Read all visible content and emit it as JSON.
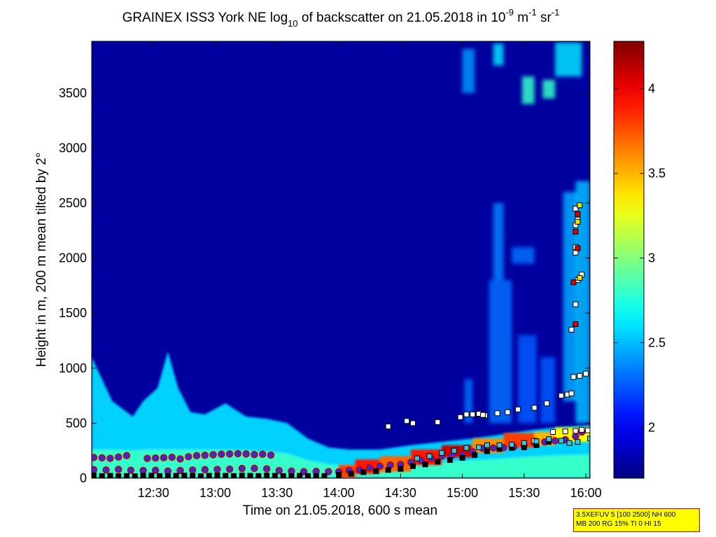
{
  "chart_data": {
    "type": "heatmap",
    "title": {
      "prefix": "GRAINEX ISS3 York NE log",
      "sub": "10",
      "mid": " of backscatter on 21.05.2018 in 10",
      "sup1": "-9",
      "mid2": " m",
      "sup2": "-1",
      "mid3": " sr",
      "sup3": "-1"
    },
    "xlabel": "Time on 21.05.2018, 600 s mean",
    "ylabel": "Height in m, 200 m mean tilted by 2°",
    "x_ticks": [
      "12:30",
      "13:00",
      "13:30",
      "14:00",
      "14:30",
      "15:00",
      "15:30",
      "16:00"
    ],
    "x_tick_minutes": [
      750,
      780,
      810,
      840,
      870,
      900,
      930,
      960
    ],
    "xlim_minutes": [
      720,
      962
    ],
    "y_ticks": [
      0,
      500,
      1000,
      1500,
      2000,
      2500,
      3000,
      3500
    ],
    "ylim": [
      0,
      3970
    ],
    "colorbar": {
      "colormap": "jet",
      "range": [
        1.7,
        4.28
      ],
      "ticks": [
        2,
        2.5,
        3,
        3.5,
        4
      ],
      "tick_labels": [
        "2",
        "2.5",
        "3",
        "3.5",
        "4"
      ]
    },
    "background_value": 1.78,
    "surface_layer": [
      {
        "t": 720,
        "top": 1100,
        "v": 2.55
      },
      {
        "t": 725,
        "top": 900,
        "v": 2.6
      },
      {
        "t": 730,
        "top": 700,
        "v": 2.65
      },
      {
        "t": 740,
        "top": 560,
        "v": 2.6
      },
      {
        "t": 745,
        "top": 700,
        "v": 2.6
      },
      {
        "t": 752,
        "top": 820,
        "v": 2.65
      },
      {
        "t": 757,
        "top": 1150,
        "v": 2.7
      },
      {
        "t": 762,
        "top": 820,
        "v": 2.65
      },
      {
        "t": 768,
        "top": 600,
        "v": 2.6
      },
      {
        "t": 775,
        "top": 580,
        "v": 2.6
      },
      {
        "t": 785,
        "top": 680,
        "v": 2.6
      },
      {
        "t": 795,
        "top": 560,
        "v": 2.6
      },
      {
        "t": 805,
        "top": 540,
        "v": 2.55
      },
      {
        "t": 815,
        "top": 500,
        "v": 2.55
      },
      {
        "t": 825,
        "top": 360,
        "v": 2.5
      },
      {
        "t": 835,
        "top": 280,
        "v": 2.5
      },
      {
        "t": 845,
        "top": 260,
        "v": 2.55
      },
      {
        "t": 860,
        "top": 260,
        "v": 2.6
      },
      {
        "t": 875,
        "top": 300,
        "v": 2.6
      },
      {
        "t": 890,
        "top": 330,
        "v": 2.6
      },
      {
        "t": 905,
        "top": 360,
        "v": 2.65
      },
      {
        "t": 920,
        "top": 400,
        "v": 2.65
      },
      {
        "t": 935,
        "top": 440,
        "v": 2.6
      },
      {
        "t": 945,
        "top": 460,
        "v": 2.6
      },
      {
        "t": 962,
        "top": 480,
        "v": 2.6
      }
    ],
    "cloud_patches": [
      {
        "t0": 900,
        "t1": 906,
        "h0": 3500,
        "h1": 3900,
        "v": 2.4
      },
      {
        "t0": 915,
        "t1": 920,
        "h0": 3750,
        "h1": 3950,
        "v": 2.6
      },
      {
        "t0": 929,
        "t1": 935,
        "h0": 3400,
        "h1": 3650,
        "v": 2.8
      },
      {
        "t0": 939,
        "t1": 945,
        "h0": 3450,
        "h1": 3620,
        "v": 2.8
      },
      {
        "t0": 945,
        "t1": 958,
        "h0": 3650,
        "h1": 3960,
        "v": 2.6
      },
      {
        "t0": 915,
        "t1": 920,
        "h0": 1800,
        "h1": 2500,
        "v": 2.35
      },
      {
        "t0": 924,
        "t1": 935,
        "h0": 1950,
        "h1": 2100,
        "v": 2.3
      },
      {
        "t0": 913,
        "t1": 924,
        "h0": 500,
        "h1": 1800,
        "v": 2.3
      },
      {
        "t0": 927,
        "t1": 936,
        "h0": 500,
        "h1": 1300,
        "v": 2.25
      },
      {
        "t0": 938,
        "t1": 945,
        "h0": 500,
        "h1": 1100,
        "v": 2.25
      },
      {
        "t0": 949,
        "t1": 956,
        "h0": 700,
        "h1": 2600,
        "v": 2.45
      },
      {
        "t0": 955,
        "t1": 962,
        "h0": 500,
        "h1": 2700,
        "v": 2.5
      },
      {
        "t0": 901,
        "t1": 905,
        "h0": 500,
        "h1": 900,
        "v": 2.3
      }
    ],
    "hot_layer": [
      {
        "t0": 840,
        "t1": 848,
        "h0": 0,
        "h1": 120,
        "v": 3.8
      },
      {
        "t0": 848,
        "t1": 860,
        "h0": 40,
        "h1": 170,
        "v": 3.9
      },
      {
        "t0": 860,
        "t1": 875,
        "h0": 60,
        "h1": 200,
        "v": 3.7
      },
      {
        "t0": 875,
        "t1": 890,
        "h0": 120,
        "h1": 260,
        "v": 3.9
      },
      {
        "t0": 890,
        "t1": 905,
        "h0": 190,
        "h1": 300,
        "v": 4.1
      },
      {
        "t0": 905,
        "t1": 920,
        "h0": 230,
        "h1": 360,
        "v": 3.6
      },
      {
        "t0": 920,
        "t1": 935,
        "h0": 280,
        "h1": 410,
        "v": 3.8
      },
      {
        "t0": 935,
        "t1": 945,
        "h0": 300,
        "h1": 420,
        "v": 3.5
      },
      {
        "t0": 945,
        "t1": 962,
        "h0": 330,
        "h1": 460,
        "v": 3.3
      }
    ],
    "series": [
      {
        "name": "",
        "marker": "circle-blue",
        "color": "#3a2bd0",
        "edge": "#cc0000",
        "points": [
          [
            721,
            188
          ],
          [
            725,
            185
          ],
          [
            729,
            180
          ],
          [
            733,
            192
          ],
          [
            737,
            205
          ],
          [
            747,
            180
          ],
          [
            751,
            183
          ],
          [
            755,
            186
          ],
          [
            759,
            190
          ],
          [
            763,
            175
          ],
          [
            767,
            195
          ],
          [
            771,
            205
          ],
          [
            775,
            208
          ],
          [
            779,
            213
          ],
          [
            783,
            218
          ],
          [
            787,
            220
          ],
          [
            791,
            223
          ],
          [
            795,
            220
          ],
          [
            799,
            215
          ],
          [
            803,
            218
          ],
          [
            807,
            210
          ],
          [
            721,
            78
          ],
          [
            727,
            75
          ],
          [
            733,
            80
          ],
          [
            739,
            72
          ],
          [
            745,
            70
          ],
          [
            751,
            72
          ],
          [
            757,
            65
          ],
          [
            763,
            70
          ],
          [
            769,
            74
          ],
          [
            775,
            78
          ],
          [
            781,
            80
          ],
          [
            787,
            82
          ],
          [
            793,
            88
          ],
          [
            799,
            90
          ],
          [
            805,
            85
          ],
          [
            811,
            70
          ],
          [
            817,
            65
          ],
          [
            823,
            60
          ],
          [
            829,
            62
          ],
          [
            835,
            60
          ],
          [
            840,
            58
          ],
          [
            845,
            70
          ],
          [
            850,
            75
          ],
          [
            855,
            95
          ],
          [
            860,
            110
          ],
          [
            865,
            120
          ],
          [
            870,
            125
          ],
          [
            875,
            145
          ],
          [
            880,
            160
          ],
          [
            885,
            180
          ],
          [
            890,
            200
          ],
          [
            895,
            210
          ],
          [
            900,
            215
          ],
          [
            905,
            240
          ],
          [
            910,
            270
          ],
          [
            915,
            275
          ],
          [
            920,
            278
          ],
          [
            925,
            285
          ],
          [
            930,
            300
          ],
          [
            935,
            320
          ],
          [
            940,
            330
          ],
          [
            945,
            340
          ],
          [
            950,
            350
          ],
          [
            955,
            380
          ],
          [
            958,
            420
          ]
        ]
      },
      {
        "name": "",
        "marker": "square-black",
        "color": "#000000",
        "points": [
          [
            721,
            25
          ],
          [
            725,
            20
          ],
          [
            729,
            22
          ],
          [
            733,
            18
          ],
          [
            737,
            20
          ],
          [
            741,
            18
          ],
          [
            745,
            22
          ],
          [
            749,
            24
          ],
          [
            753,
            20
          ],
          [
            757,
            18
          ],
          [
            761,
            22
          ],
          [
            765,
            24
          ],
          [
            769,
            20
          ],
          [
            773,
            18
          ],
          [
            777,
            22
          ],
          [
            781,
            25
          ],
          [
            785,
            22
          ],
          [
            789,
            20
          ],
          [
            793,
            24
          ],
          [
            797,
            22
          ],
          [
            801,
            20
          ],
          [
            805,
            24
          ],
          [
            809,
            22
          ],
          [
            813,
            20
          ],
          [
            817,
            18
          ],
          [
            821,
            22
          ],
          [
            825,
            20
          ],
          [
            829,
            18
          ],
          [
            833,
            20
          ],
          [
            840,
            30
          ],
          [
            846,
            40
          ],
          [
            852,
            55
          ],
          [
            858,
            65
          ],
          [
            864,
            75
          ],
          [
            870,
            85
          ],
          [
            876,
            110
          ],
          [
            882,
            125
          ],
          [
            888,
            150
          ],
          [
            894,
            165
          ],
          [
            900,
            185
          ],
          [
            906,
            210
          ],
          [
            912,
            245
          ],
          [
            918,
            265
          ],
          [
            924,
            275
          ],
          [
            930,
            280
          ],
          [
            936,
            300
          ],
          [
            942,
            330
          ]
        ]
      },
      {
        "name": "",
        "marker": "square-white",
        "color": "#ffffff",
        "points": [
          [
            864,
            470
          ],
          [
            873,
            520
          ],
          [
            876,
            500
          ],
          [
            888,
            510
          ],
          [
            899,
            555
          ],
          [
            902,
            580
          ],
          [
            908,
            585
          ],
          [
            911,
            570
          ],
          [
            917,
            590
          ],
          [
            922,
            600
          ],
          [
            927,
            625
          ],
          [
            935,
            640
          ],
          [
            941,
            680
          ],
          [
            948,
            750
          ],
          [
            951,
            760
          ],
          [
            953,
            770
          ],
          [
            954,
            920
          ],
          [
            957,
            930
          ],
          [
            960,
            950
          ],
          [
            953,
            1350
          ],
          [
            955,
            1580
          ],
          [
            956,
            1800
          ],
          [
            958,
            1850
          ],
          [
            955,
            2050
          ],
          [
            955,
            2100
          ],
          [
            955,
            2300
          ],
          [
            956,
            2350
          ],
          [
            955,
            2450
          ],
          [
            905,
            580
          ],
          [
            910,
            575
          ],
          [
            935,
            340
          ],
          [
            944,
            420
          ],
          [
            950,
            425
          ],
          [
            955,
            430
          ],
          [
            958,
            440
          ],
          [
            961,
            435
          ]
        ]
      },
      {
        "name": "",
        "marker": "square-cyan",
        "color": "#3ec6e0",
        "points": [
          [
            878,
            180
          ],
          [
            884,
            200
          ],
          [
            890,
            230
          ],
          [
            896,
            250
          ],
          [
            902,
            275
          ],
          [
            908,
            280
          ],
          [
            912,
            300
          ],
          [
            918,
            300
          ],
          [
            924,
            305
          ],
          [
            930,
            320
          ],
          [
            936,
            335
          ],
          [
            942,
            355
          ],
          [
            948,
            340
          ],
          [
            952,
            320
          ],
          [
            956,
            330
          ],
          [
            962,
            360
          ]
        ]
      },
      {
        "name": "",
        "marker": "square-red",
        "color": "#dd0000",
        "points": [
          [
            955,
            2240
          ],
          [
            956,
            2090
          ],
          [
            954,
            1780
          ],
          [
            955,
            1400
          ],
          [
            956,
            2400
          ]
        ]
      },
      {
        "name": "",
        "marker": "square-yellow",
        "color": "#f2e200",
        "points": [
          [
            957,
            2480
          ],
          [
            956,
            2330
          ],
          [
            957,
            1820
          ]
        ]
      }
    ]
  },
  "info_box": {
    "line1": "3.5XEFUV 5 [100 2500] NH 600",
    "line2": "MB 200 RG 15% TI 0 HI 15"
  }
}
